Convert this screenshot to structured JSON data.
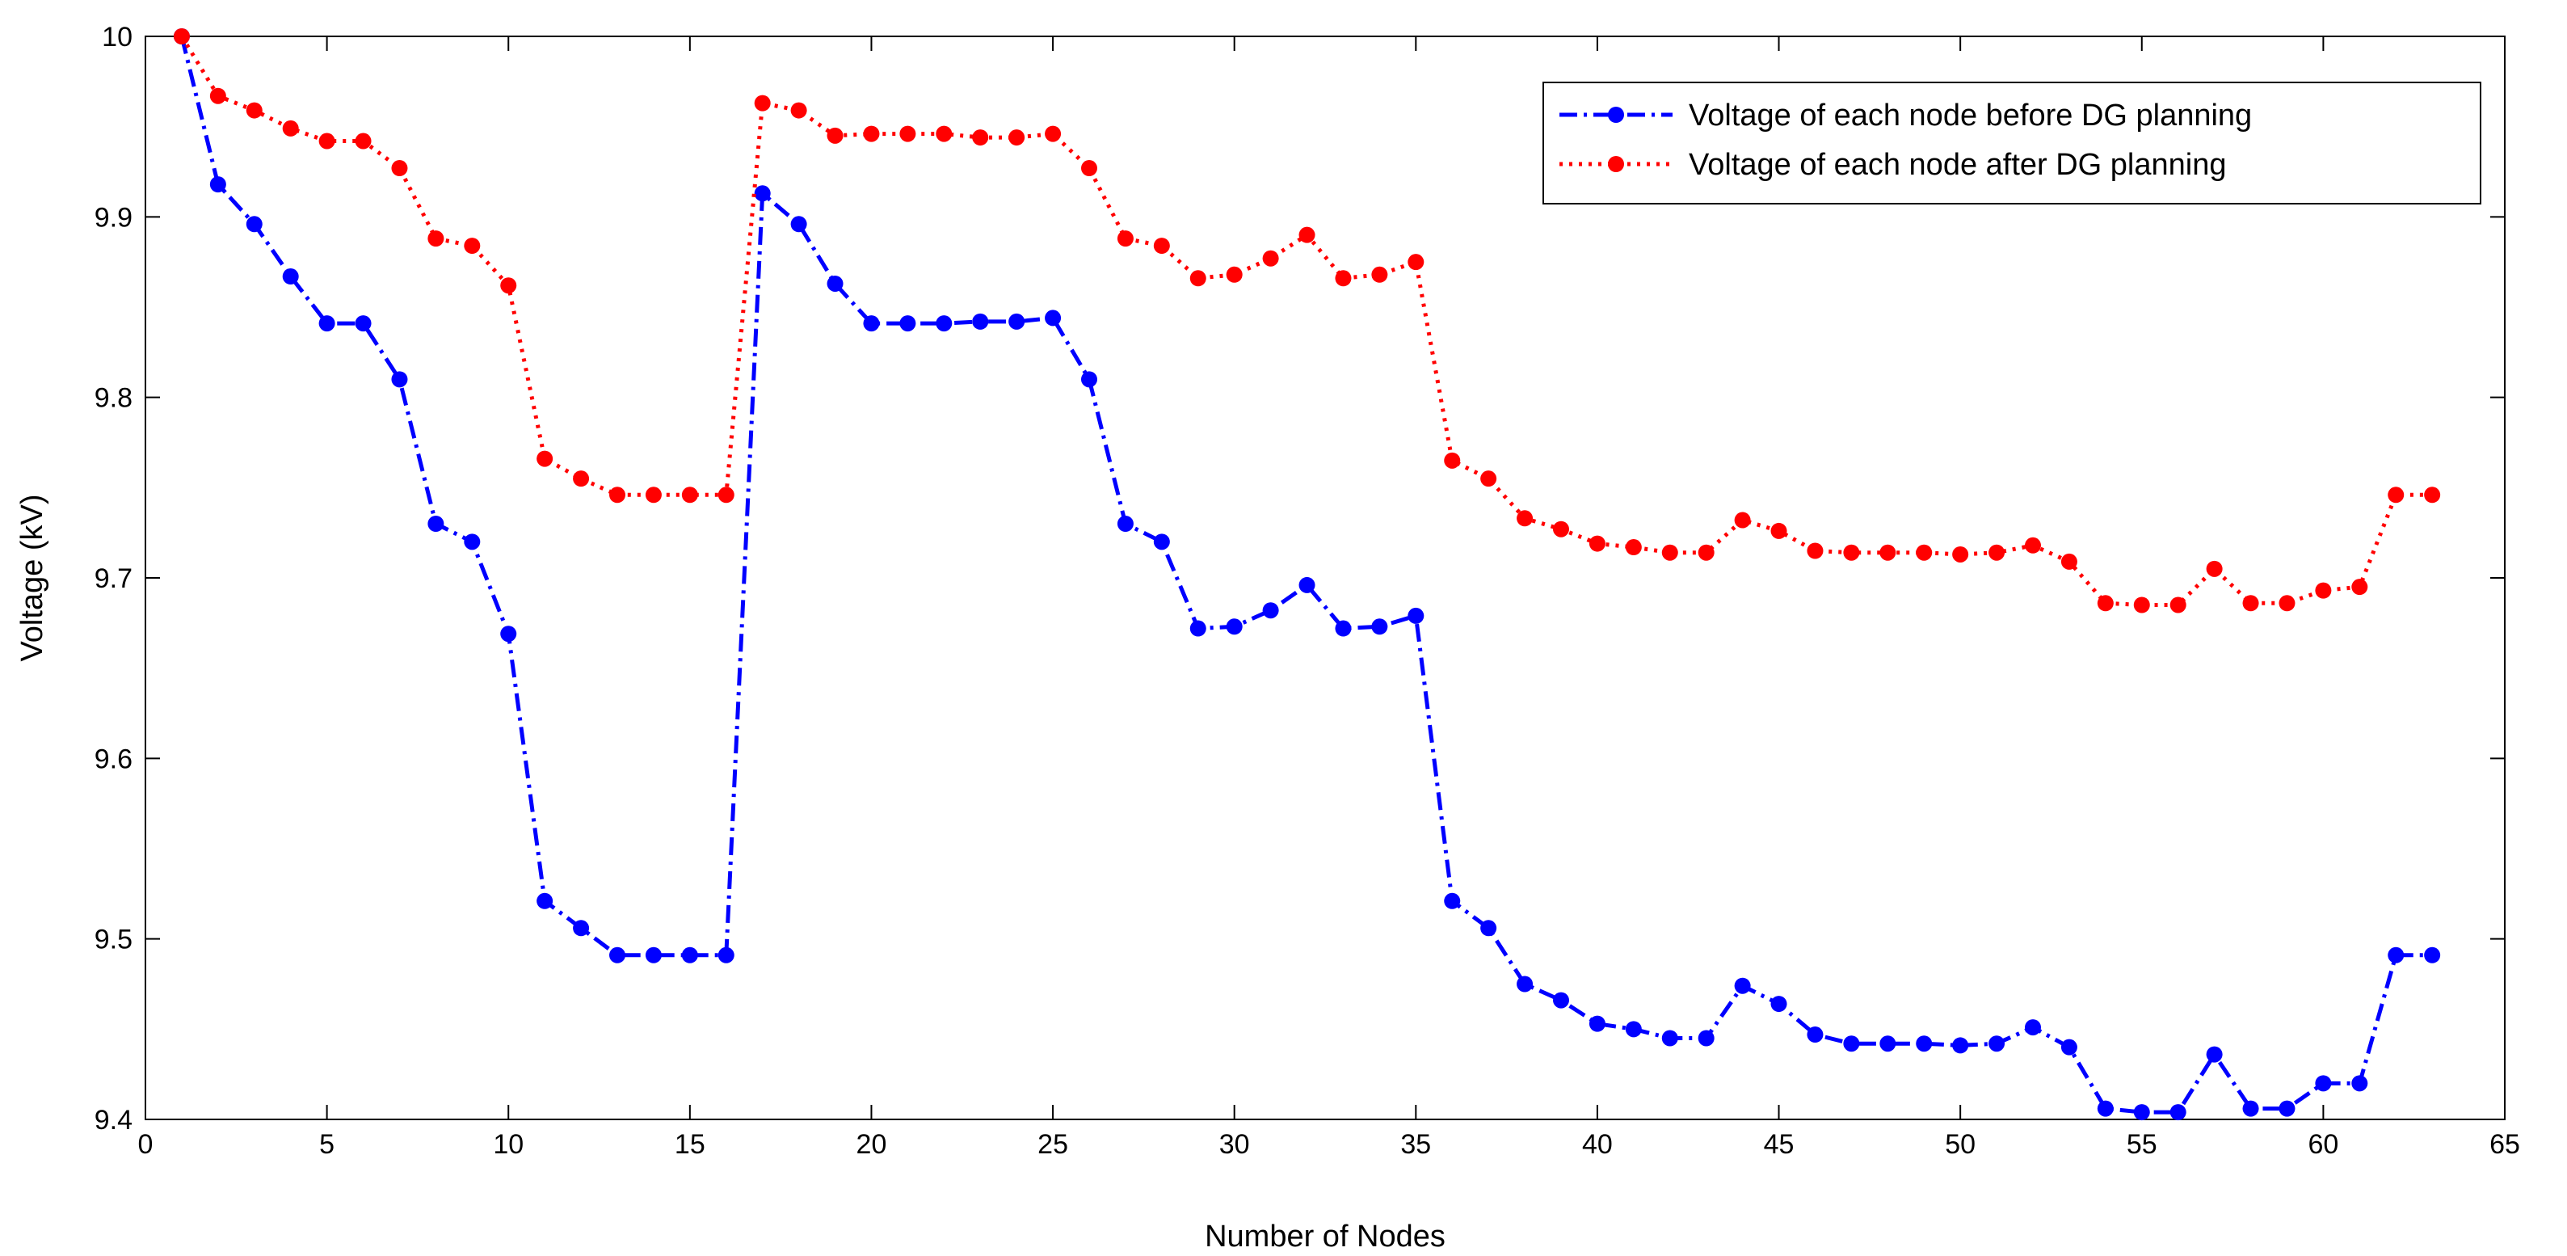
{
  "chart_data": {
    "type": "line",
    "title": "",
    "xlabel": "Number of Nodes",
    "ylabel": "Voltage (kV)",
    "xlim": [
      0,
      65
    ],
    "ylim": [
      9.4,
      10.0
    ],
    "xticks": [
      0,
      5,
      10,
      15,
      20,
      25,
      30,
      35,
      40,
      45,
      50,
      55,
      60,
      65
    ],
    "yticks": [
      9.4,
      9.5,
      9.6,
      9.7,
      9.8,
      9.9,
      10.0
    ],
    "xtick_labels": [
      "0",
      "5",
      "10",
      "15",
      "20",
      "25",
      "30",
      "35",
      "40",
      "45",
      "50",
      "55",
      "60",
      "65"
    ],
    "ytick_labels": [
      "9.4",
      "9.5",
      "9.6",
      "9.7",
      "9.8",
      "9.9",
      "10"
    ],
    "grid": false,
    "legend_position": "top-right",
    "x": [
      1,
      2,
      3,
      4,
      5,
      6,
      7,
      8,
      9,
      10,
      11,
      12,
      13,
      14,
      15,
      16,
      17,
      18,
      19,
      20,
      21,
      22,
      23,
      24,
      25,
      26,
      27,
      28,
      29,
      30,
      31,
      32,
      33,
      34,
      35,
      36,
      37,
      38,
      39,
      40,
      41,
      42,
      43,
      44,
      45,
      46,
      47,
      48,
      49,
      50,
      51,
      52,
      53,
      54,
      55,
      56,
      57,
      58,
      59,
      60,
      61,
      62,
      63
    ],
    "series": [
      {
        "name": "Voltage of each node before DG planning",
        "color": "#0000ff",
        "line_style": "dash-dot",
        "marker": "circle",
        "values": [
          10.0,
          9.918,
          9.896,
          9.867,
          9.841,
          9.841,
          9.81,
          9.73,
          9.72,
          9.669,
          9.521,
          9.506,
          9.491,
          9.491,
          9.491,
          9.491,
          9.913,
          9.896,
          9.863,
          9.841,
          9.841,
          9.841,
          9.842,
          9.842,
          9.844,
          9.81,
          9.73,
          9.72,
          9.672,
          9.673,
          9.682,
          9.696,
          9.672,
          9.673,
          9.679,
          9.521,
          9.506,
          9.475,
          9.466,
          9.453,
          9.45,
          9.445,
          9.445,
          9.474,
          9.464,
          9.447,
          9.442,
          9.442,
          9.442,
          9.441,
          9.442,
          9.451,
          9.44,
          9.406,
          9.404,
          9.404,
          9.436,
          9.406,
          9.406,
          9.42,
          9.42,
          9.491,
          9.491
        ]
      },
      {
        "name": "Voltage of each node after DG planning",
        "color": "#ff0000",
        "line_style": "dotted",
        "marker": "circle",
        "values": [
          10.0,
          9.967,
          9.959,
          9.949,
          9.942,
          9.942,
          9.927,
          9.888,
          9.884,
          9.862,
          9.766,
          9.755,
          9.746,
          9.746,
          9.746,
          9.746,
          9.963,
          9.959,
          9.945,
          9.946,
          9.946,
          9.946,
          9.944,
          9.944,
          9.946,
          9.927,
          9.888,
          9.884,
          9.866,
          9.868,
          9.877,
          9.89,
          9.866,
          9.868,
          9.875,
          9.765,
          9.755,
          9.733,
          9.727,
          9.719,
          9.717,
          9.714,
          9.714,
          9.732,
          9.726,
          9.715,
          9.714,
          9.714,
          9.714,
          9.713,
          9.714,
          9.718,
          9.709,
          9.686,
          9.685,
          9.685,
          9.705,
          9.686,
          9.686,
          9.693,
          9.695,
          9.746,
          9.746
        ]
      }
    ]
  }
}
